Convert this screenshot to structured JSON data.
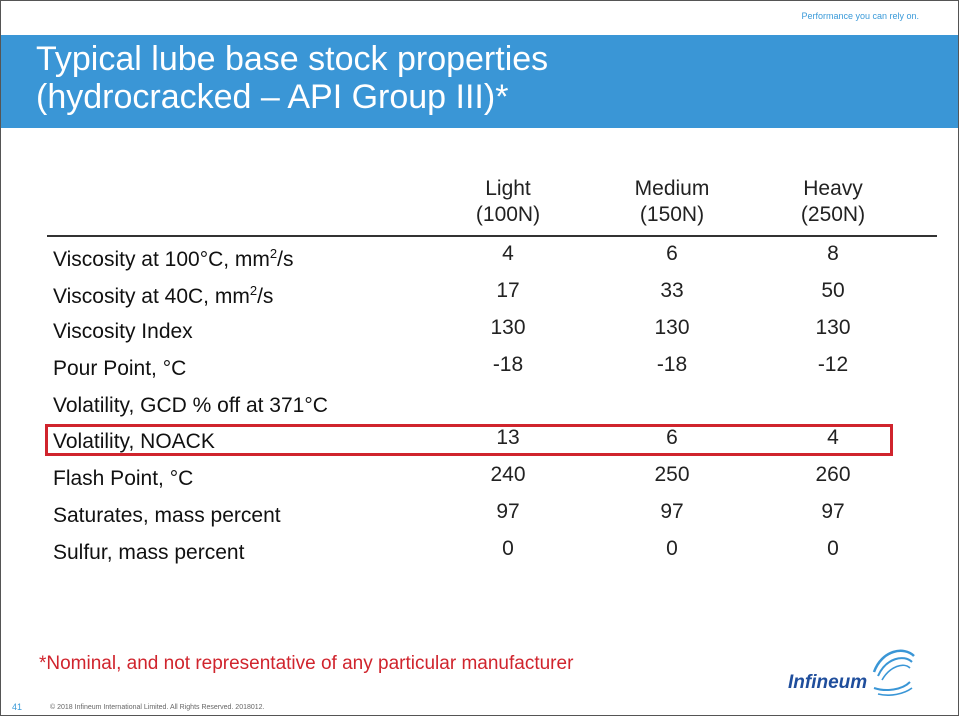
{
  "header": {
    "tagline": "Performance you can rely on.",
    "title": "Typical lube base stock properties\n(hydrocracked – API Group III)*"
  },
  "table": {
    "columns": [
      "Light\n(100N)",
      "Medium\n(150N)",
      "Heavy\n(250N)"
    ],
    "rows": [
      {
        "label_main": "Viscosity at 100°C, mm",
        "label_sup": "2",
        "label_tail": "/s",
        "values": [
          "4",
          "6",
          "8"
        ]
      },
      {
        "label_main": "Viscosity at 40C, mm",
        "label_sup": "2",
        "label_tail": "/s",
        "values": [
          "17",
          "33",
          "50"
        ]
      },
      {
        "label_main": "Viscosity Index",
        "label_sup": "",
        "label_tail": "",
        "values": [
          "130",
          "130",
          "130"
        ]
      },
      {
        "label_main": "Pour Point, °C",
        "label_sup": "",
        "label_tail": "",
        "values": [
          "-18",
          "-18",
          "-12"
        ]
      },
      {
        "label_main": "Volatility, GCD % off at 371°C",
        "label_sup": "",
        "label_tail": "",
        "values": [
          "",
          "",
          ""
        ]
      },
      {
        "label_main": "Volatility, NOACK",
        "label_sup": "",
        "label_tail": "",
        "values": [
          "13",
          "6",
          "4"
        ]
      },
      {
        "label_main": "Flash Point, °C",
        "label_sup": "",
        "label_tail": "",
        "values": [
          "240",
          "250",
          "260"
        ]
      },
      {
        "label_main": "Saturates, mass percent",
        "label_sup": "",
        "label_tail": "",
        "values": [
          "97",
          "97",
          "97"
        ]
      },
      {
        "label_main": "Sulfur, mass percent",
        "label_sup": "",
        "label_tail": "",
        "values": [
          "0",
          "0",
          "0"
        ]
      }
    ],
    "highlight_color": "#d0242d"
  },
  "footnote": "*Nominal, and not representative of any particular manufacturer",
  "footer": {
    "page_number": "41",
    "copyright": "© 2018 Infineum International Limited. All Rights Reserved. 2018012.",
    "logo_text": "Infineum"
  },
  "colors": {
    "banner": "#3a96d6",
    "accent_red": "#d0242d",
    "logo_blue": "#1f4e9c"
  }
}
